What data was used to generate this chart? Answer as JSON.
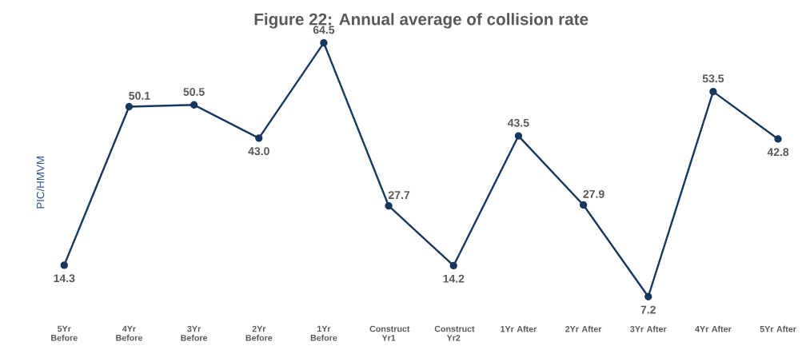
{
  "chart_data": {
    "type": "line",
    "title": "Figure 22: Annual average of collision rate",
    "ylabel": "PIC/HMVM",
    "categories": [
      "5Yr Before",
      "4Yr Before",
      "3Yr Before",
      "2Yr Before",
      "1Yr Before",
      "Construct Yr1",
      "Construct Yr2",
      "1Yr After",
      "2Yr After",
      "3Yr After",
      "4Yr After",
      "5Yr After"
    ],
    "series": [
      {
        "color": "#17375e",
        "values": [
          14.3,
          50.1,
          50.5,
          43.0,
          64.5,
          27.7,
          14.2,
          43.5,
          27.9,
          7.2,
          53.5,
          42.8
        ],
        "value_labels": [
          "14.3",
          "50.1",
          "50.5",
          "43.0",
          "64.5",
          "27.7",
          "14.2",
          "43.5",
          "27.9",
          "7.2",
          "53.5",
          "42.8"
        ]
      }
    ],
    "marker": "circle",
    "line_style": "solid"
  }
}
